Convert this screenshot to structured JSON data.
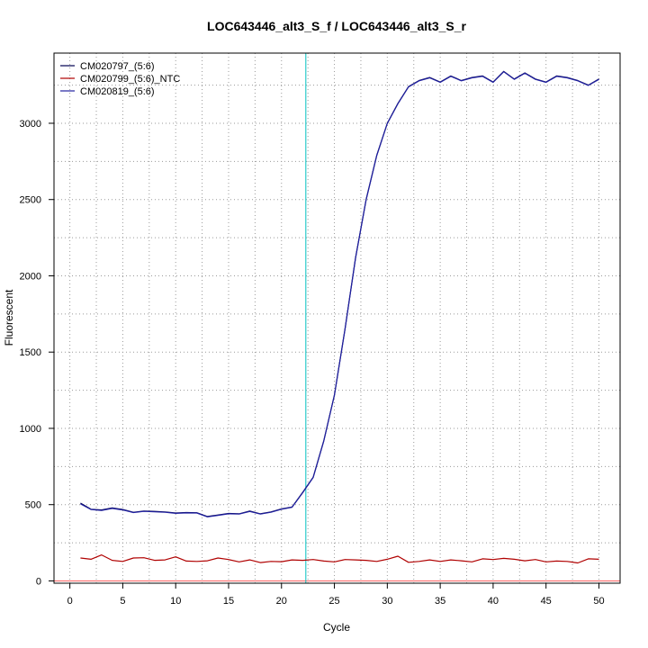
{
  "chart_data": {
    "type": "line",
    "title": "LOC643446_alt3_S_f / LOC643446_alt3_S_r",
    "xlabel": "Cycle",
    "ylabel": "Fluorescent",
    "xlim": [
      -1.5,
      52
    ],
    "ylim": [
      -15,
      3460
    ],
    "xticks": [
      0,
      5,
      10,
      15,
      20,
      25,
      30,
      35,
      40,
      45,
      50
    ],
    "yticks": [
      0,
      500,
      1000,
      1500,
      2000,
      2500,
      3000
    ],
    "grid": true,
    "legend_position": "top-left",
    "threshold_x": 22.3,
    "threshold_color": "#00c0c0",
    "baseline_y": 0,
    "baseline_color": "#ff6060",
    "x": [
      1,
      2,
      3,
      4,
      5,
      6,
      7,
      8,
      9,
      10,
      11,
      12,
      13,
      14,
      15,
      16,
      17,
      18,
      19,
      20,
      21,
      22,
      23,
      24,
      25,
      26,
      27,
      28,
      29,
      30,
      31,
      32,
      33,
      34,
      35,
      36,
      37,
      38,
      39,
      40,
      41,
      42,
      43,
      44,
      45,
      46,
      47,
      48,
      49,
      50
    ],
    "series": [
      {
        "name": "CM020797_(5:6)",
        "color": "#000050",
        "values": [
          510,
          470,
          465,
          478,
          468,
          450,
          458,
          456,
          452,
          445,
          448,
          447,
          422,
          432,
          442,
          440,
          458,
          440,
          452,
          472,
          485,
          580,
          680,
          920,
          1220,
          1650,
          2120,
          2500,
          2790,
          3000,
          3130,
          3240,
          3280,
          3300,
          3270,
          3310,
          3280,
          3300,
          3310,
          3270,
          3340,
          3290,
          3330,
          3290,
          3270,
          3310,
          3300,
          3280,
          3250,
          3290
        ]
      },
      {
        "name": "CM020799_(5:6)_NTC",
        "color": "#b00000",
        "values": [
          150,
          142,
          170,
          135,
          128,
          150,
          152,
          135,
          138,
          158,
          130,
          128,
          132,
          150,
          140,
          125,
          138,
          120,
          128,
          126,
          138,
          135,
          140,
          130,
          125,
          140,
          138,
          135,
          128,
          142,
          162,
          122,
          128,
          138,
          128,
          138,
          132,
          125,
          145,
          140,
          148,
          142,
          132,
          140,
          125,
          130,
          128,
          118,
          145,
          142
        ]
      },
      {
        "name": "CM020819_(5:6)",
        "color": "#2020a0",
        "values": [
          505,
          468,
          462,
          475,
          465,
          448,
          456,
          453,
          450,
          443,
          446,
          445,
          420,
          430,
          440,
          438,
          455,
          438,
          450,
          470,
          483,
          578,
          678,
          918,
          1218,
          1648,
          2118,
          2498,
          2788,
          2998,
          3128,
          3238,
          3278,
          3298,
          3268,
          3308,
          3278,
          3298,
          3308,
          3268,
          3338,
          3288,
          3328,
          3288,
          3268,
          3308,
          3298,
          3278,
          3248,
          3288
        ]
      }
    ]
  }
}
